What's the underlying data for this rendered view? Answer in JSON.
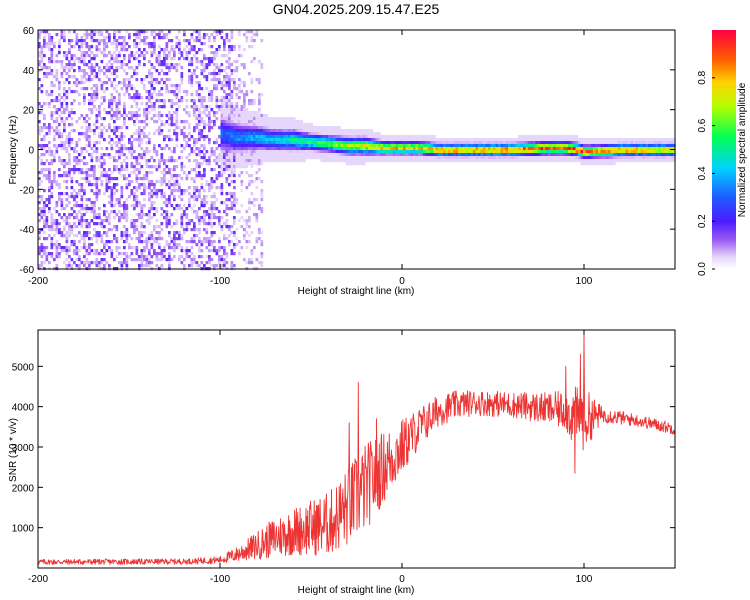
{
  "figure": {
    "title": "GN04.2025.209.15.47.E25"
  },
  "chart_data": [
    {
      "type": "heatmap",
      "xlabel": "Height of straight line (km)",
      "ylabel": "Frequency (Hz)",
      "xlim": [
        -200,
        150
      ],
      "ylim": [
        -60,
        60
      ],
      "xticks": [
        -200,
        -100,
        0,
        100
      ],
      "yticks": [
        -60,
        -40,
        -20,
        0,
        20,
        40,
        60
      ],
      "grid": false,
      "colorbar": {
        "label": "Normalized spectral amplitude",
        "range": [
          0,
          1
        ],
        "ticks": [
          0.0,
          0.2,
          0.4,
          0.6,
          0.8
        ],
        "colormap": [
          "#ffffff",
          "#c9a9ef",
          "#7b2cf0",
          "#2a2aff",
          "#00c8ff",
          "#00ff66",
          "#ffff00",
          "#ff6600",
          "#ff0033"
        ]
      },
      "noise_region": {
        "x": [
          -200,
          -92
        ],
        "y": [
          -60,
          60
        ],
        "amplitude": [
          0.0,
          0.15
        ]
      },
      "ridge": {
        "x": [
          -100,
          -90,
          -80,
          -70,
          -60,
          -50,
          -40,
          -30,
          -20,
          -10,
          0,
          10,
          20,
          40,
          60,
          80,
          90,
          97,
          100,
          120,
          150
        ],
        "frequency": [
          8,
          6,
          6,
          5,
          5,
          4,
          3,
          2,
          2,
          1,
          1,
          1,
          0,
          0,
          0,
          1,
          1,
          0,
          -1,
          0,
          0
        ],
        "amplitude": [
          0.3,
          0.35,
          0.4,
          0.45,
          0.5,
          0.55,
          0.6,
          0.7,
          0.75,
          0.8,
          0.8,
          0.8,
          0.85,
          0.85,
          0.9,
          0.95,
          0.95,
          1.0,
          0.9,
          0.85,
          0.8
        ],
        "halfwidth_hz": [
          9,
          7,
          6,
          5,
          5,
          4,
          4,
          4,
          4,
          3,
          3,
          3,
          3,
          3,
          3,
          3,
          3,
          3,
          3,
          3,
          3
        ]
      }
    },
    {
      "type": "line",
      "xlabel": "Height of straight line (km)",
      "ylabel": "SNR (10 * v/v)",
      "xlim": [
        -200,
        150
      ],
      "ylim": [
        0,
        5900
      ],
      "xticks": [
        -200,
        -100,
        0,
        100
      ],
      "yticks": [
        1000,
        2000,
        3000,
        4000,
        5000
      ],
      "grid": false,
      "series": [
        {
          "color": "#ee3333",
          "envelope": {
            "x": [
              -200,
              -120,
              -100,
              -90,
              -80,
              -70,
              -60,
              -50,
              -40,
              -30,
              -20,
              -10,
              0,
              10,
              20,
              30,
              40,
              60,
              80,
              90,
              95,
              100,
              110,
              130,
              150
            ],
            "y": [
              150,
              160,
              200,
              350,
              550,
              750,
              900,
              1000,
              1100,
              1500,
              2000,
              2500,
              3000,
              3500,
              3900,
              4050,
              4100,
              4050,
              3950,
              3900,
              3700,
              3700,
              3800,
              3650,
              3450
            ]
          },
          "noise": {
            "x": [
              -200,
              -120,
              -100,
              -90,
              -80,
              -70,
              -60,
              -50,
              -40,
              -30,
              -20,
              -10,
              0,
              10,
              20,
              30,
              40,
              60,
              80,
              90,
              95,
              100,
              110,
              130,
              150
            ],
            "y": [
              70,
              70,
              90,
              200,
              350,
              500,
              600,
              700,
              800,
              1000,
              1100,
              900,
              700,
              500,
              400,
              350,
              320,
              320,
              400,
              500,
              800,
              800,
              200,
              150,
              150
            ]
          },
          "spikes": [
            {
              "x": -24,
              "y": 4600
            },
            {
              "x": -29,
              "y": 3600
            },
            {
              "x": -14,
              "y": 3700
            },
            {
              "x": 100,
              "y": 5900
            },
            {
              "x": 98,
              "y": 5300
            },
            {
              "x": 90,
              "y": 5000
            },
            {
              "x": 95,
              "y": 2350
            }
          ]
        }
      ]
    }
  ]
}
